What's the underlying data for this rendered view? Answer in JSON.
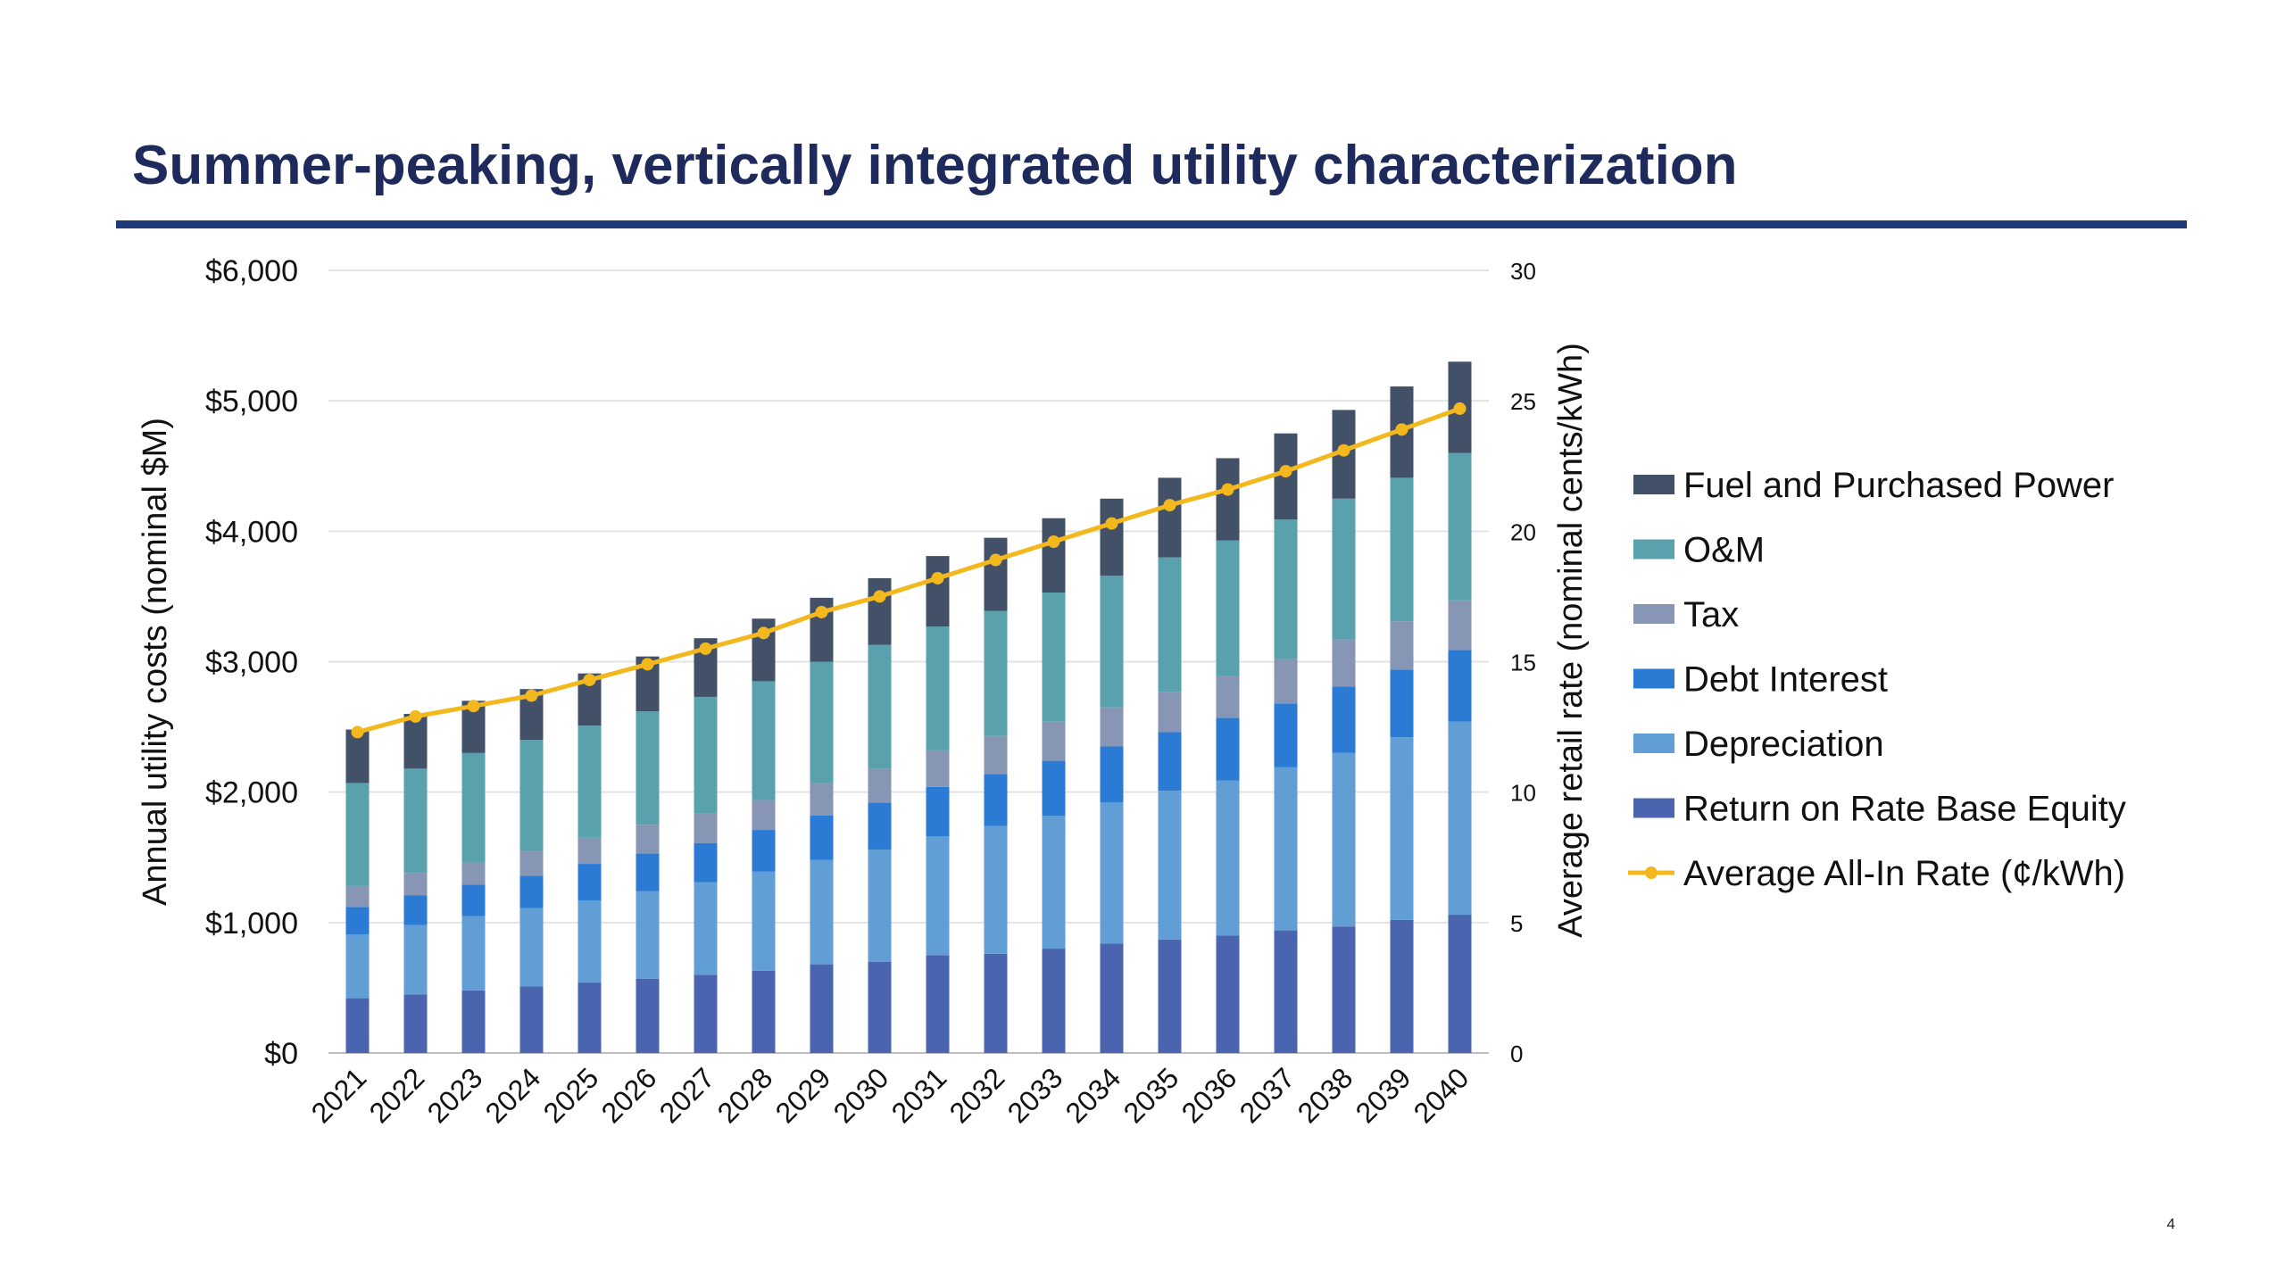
{
  "slide": {
    "title": "Summer-peaking, vertically integrated utility characterization",
    "page_number": "4"
  },
  "chart_data": {
    "type": "bar",
    "stacked": true,
    "categories": [
      "2021",
      "2022",
      "2023",
      "2024",
      "2025",
      "2026",
      "2027",
      "2028",
      "2029",
      "2030",
      "2031",
      "2032",
      "2033",
      "2034",
      "2035",
      "2036",
      "2037",
      "2038",
      "2039",
      "2040"
    ],
    "ylabel": "Annual utility costs (nominal $M)",
    "ylim": [
      0,
      6000
    ],
    "yticks": [
      {
        "value": 0,
        "label": "$0"
      },
      {
        "value": 1000,
        "label": "$1,000"
      },
      {
        "value": 2000,
        "label": "$2,000"
      },
      {
        "value": 3000,
        "label": "$3,000"
      },
      {
        "value": 4000,
        "label": "$4,000"
      },
      {
        "value": 5000,
        "label": "$5,000"
      },
      {
        "value": 6000,
        "label": "$6,000"
      }
    ],
    "y2label": "Average retail rate (nominal cents/kWh)",
    "y2lim": [
      0,
      30
    ],
    "y2ticks": [
      {
        "value": 0,
        "label": "0"
      },
      {
        "value": 5,
        "label": "5"
      },
      {
        "value": 10,
        "label": "10"
      },
      {
        "value": 15,
        "label": "15"
      },
      {
        "value": 20,
        "label": "20"
      },
      {
        "value": 25,
        "label": "25"
      },
      {
        "value": 30,
        "label": "30"
      }
    ],
    "grid": true,
    "legend_position": "right",
    "series": [
      {
        "name": "Return on Rate Base Equity",
        "color": "#4a64b0",
        "values": [
          420,
          450,
          480,
          510,
          540,
          570,
          600,
          630,
          680,
          700,
          750,
          760,
          800,
          840,
          870,
          900,
          940,
          970,
          1020,
          1060
        ]
      },
      {
        "name": "Depreciation",
        "color": "#629ed6",
        "values": [
          490,
          530,
          570,
          600,
          630,
          670,
          710,
          760,
          800,
          860,
          910,
          980,
          1020,
          1080,
          1140,
          1190,
          1250,
          1330,
          1400,
          1480
        ]
      },
      {
        "name": "Debt Interest",
        "color": "#2b7ad4",
        "values": [
          210,
          230,
          240,
          250,
          280,
          290,
          300,
          320,
          340,
          360,
          380,
          400,
          420,
          430,
          450,
          480,
          490,
          510,
          520,
          550
        ]
      },
      {
        "name": "Tax",
        "color": "#8696b4",
        "values": [
          160,
          170,
          170,
          190,
          200,
          220,
          230,
          230,
          250,
          260,
          280,
          290,
          300,
          300,
          310,
          320,
          340,
          360,
          370,
          380
        ]
      },
      {
        "name": "O&M",
        "color": "#59a2ad",
        "values": [
          790,
          800,
          840,
          850,
          860,
          870,
          890,
          910,
          930,
          950,
          950,
          960,
          990,
          1010,
          1030,
          1040,
          1070,
          1080,
          1100,
          1130
        ]
      },
      {
        "name": "Fuel and Purchased Power",
        "color": "#435168",
        "values": [
          410,
          420,
          400,
          390,
          400,
          420,
          450,
          480,
          490,
          510,
          540,
          560,
          570,
          590,
          610,
          630,
          660,
          680,
          700,
          700
        ]
      }
    ],
    "line_series": {
      "name": "Average All-In Rate (¢/kWh)",
      "color": "#f2b81d",
      "axis": "right",
      "values": [
        12.3,
        12.9,
        13.3,
        13.7,
        14.3,
        14.9,
        15.5,
        16.1,
        16.9,
        17.5,
        18.2,
        18.9,
        19.6,
        20.3,
        21.0,
        21.6,
        22.3,
        23.1,
        23.9,
        24.7
      ]
    },
    "legend_order": [
      "Fuel and Purchased Power",
      "O&M",
      "Tax",
      "Debt Interest",
      "Depreciation",
      "Return on Rate Base Equity",
      "Average All-In Rate (¢/kWh)"
    ]
  }
}
